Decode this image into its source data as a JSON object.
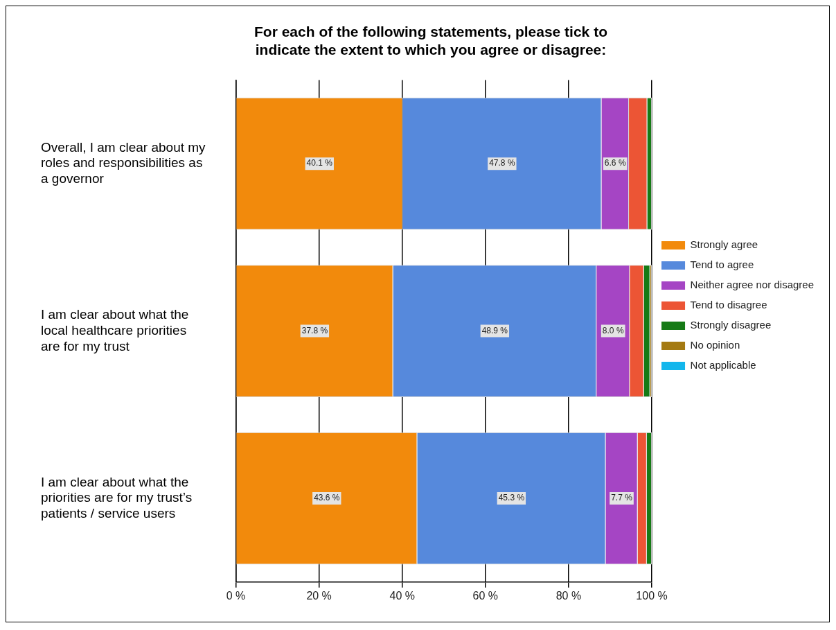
{
  "chart_data": {
    "type": "bar",
    "orientation": "horizontal",
    "stacked": true,
    "title": "For each of the following statements, please tick to indicate the extent to which you agree or disagree:",
    "categories": [
      "Overall, I am clear about my roles and responsibilities as a governor",
      "I am clear about what the local healthcare priorities are for my trust",
      "I am clear about what the priorities are for my trust’s patients / service users"
    ],
    "series": [
      {
        "name": "Strongly agree",
        "color": "#f28a0c",
        "values": [
          40.1,
          37.8,
          43.6
        ],
        "value_labels": [
          "40.1 %",
          "37.8 %",
          "43.6 %"
        ]
      },
      {
        "name": "Tend to agree",
        "color": "#5689dc",
        "values": [
          47.8,
          48.9,
          45.3
        ],
        "value_labels": [
          "47.8 %",
          "48.9 %",
          "45.3 %"
        ]
      },
      {
        "name": "Neither agree nor disagree",
        "color": "#a545c4",
        "values": [
          6.6,
          8.0,
          7.7
        ],
        "value_labels": [
          "6.6 %",
          "8.0 %",
          "7.7 %"
        ]
      },
      {
        "name": "Tend to disagree",
        "color": "#ec5535",
        "values": [
          4.4,
          3.4,
          2.2
        ]
      },
      {
        "name": "Strongly disagree",
        "color": "#167a16",
        "values": [
          1.1,
          1.5,
          1.2
        ]
      },
      {
        "name": "No opinion",
        "color": "#a47a12",
        "values": [
          0,
          0.4,
          0
        ]
      },
      {
        "name": "Not applicable",
        "color": "#13b6ec",
        "values": [
          0,
          0,
          0
        ]
      }
    ],
    "xlim": [
      0,
      100
    ],
    "xticks": [
      {
        "value": 0,
        "label": "0 %"
      },
      {
        "value": 20,
        "label": "20 %"
      },
      {
        "value": 40,
        "label": "40 %"
      },
      {
        "value": 60,
        "label": "60 %"
      },
      {
        "value": 80,
        "label": "80 %"
      },
      {
        "value": 100,
        "label": "100 %"
      }
    ],
    "grid": "x",
    "legend": "right"
  }
}
